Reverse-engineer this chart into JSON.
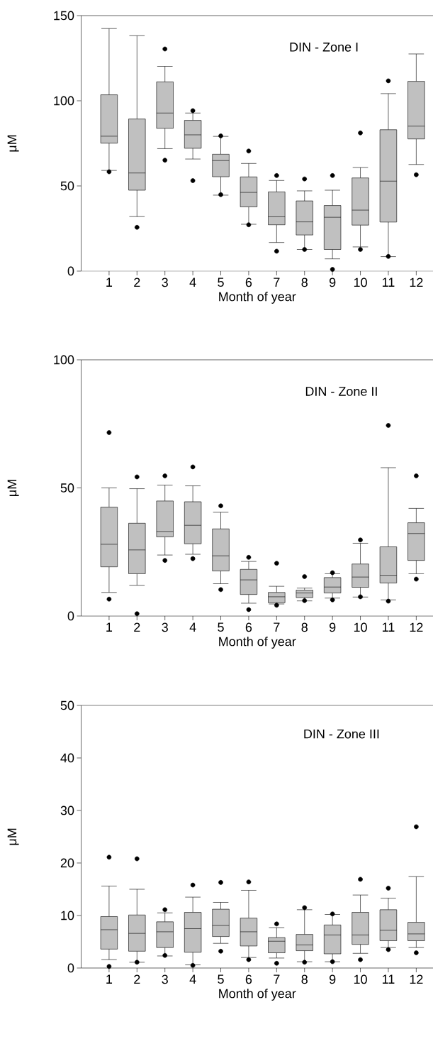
{
  "chart_data": [
    {
      "type": "box",
      "title": "DIN - Zone I",
      "xlabel": "Month of year",
      "ylabel": "μM",
      "categories": [
        "1",
        "2",
        "3",
        "4",
        "5",
        "6",
        "7",
        "8",
        "9",
        "10",
        "11",
        "12"
      ],
      "ylim": [
        0,
        150
      ],
      "yticks": [
        0,
        50,
        100,
        150
      ],
      "marker": "circle",
      "series": [
        {
          "color": "#c0c0c0",
          "boxes": [
            {
              "low": 59.1,
              "q1": 75.1,
              "median": 79.2,
              "q3": 103.5,
              "high": 142.4,
              "outliers": [
                58.3
              ]
            },
            {
              "low": 32.0,
              "q1": 47.5,
              "median": 57.6,
              "q3": 89.3,
              "high": 138.2,
              "outliers": [
                25.7
              ]
            },
            {
              "low": 71.9,
              "q1": 83.8,
              "median": 92.8,
              "q3": 111.1,
              "high": 120.2,
              "outliers": [
                130.4,
                65.1
              ]
            },
            {
              "low": 65.8,
              "q1": 72.1,
              "median": 80.0,
              "q3": 88.5,
              "high": 92.8,
              "outliers": [
                94.2,
                53.1
              ]
            },
            {
              "low": 44.6,
              "q1": 55.4,
              "median": 64.9,
              "q3": 68.6,
              "high": 79.1,
              "outliers": [
                79.4,
                44.9
              ]
            },
            {
              "low": 27.5,
              "q1": 37.7,
              "median": 46.2,
              "q3": 55.3,
              "high": 63.2,
              "outliers": [
                70.5,
                27.2
              ]
            },
            {
              "low": 16.8,
              "q1": 27.2,
              "median": 31.9,
              "q3": 46.5,
              "high": 53.2,
              "outliers": [
                56.1,
                11.7
              ]
            },
            {
              "low": 12.7,
              "q1": 21.2,
              "median": 28.9,
              "q3": 41.2,
              "high": 47.1,
              "outliers": [
                54.1,
                12.7
              ]
            },
            {
              "low": 7.2,
              "q1": 12.7,
              "median": 31.6,
              "q3": 38.5,
              "high": 47.5,
              "outliers": [
                56.1,
                1.0
              ]
            },
            {
              "low": 14.2,
              "q1": 27.0,
              "median": 35.8,
              "q3": 54.7,
              "high": 60.8,
              "outliers": [
                81.1,
                12.7
              ]
            },
            {
              "low": 8.5,
              "q1": 28.8,
              "median": 52.8,
              "q3": 83.0,
              "high": 104.2,
              "outliers": [
                111.7,
                8.6
              ]
            },
            {
              "low": 62.6,
              "q1": 77.6,
              "median": 85.1,
              "q3": 111.4,
              "high": 127.5,
              "outliers": [
                56.6
              ]
            }
          ]
        }
      ]
    },
    {
      "type": "box",
      "title": "DIN - Zone II",
      "xlabel": "Month of year",
      "ylabel": "μM",
      "categories": [
        "1",
        "2",
        "3",
        "4",
        "5",
        "6",
        "7",
        "8",
        "9",
        "10",
        "11",
        "12"
      ],
      "ylim": [
        0,
        100
      ],
      "yticks": [
        0,
        50,
        100
      ],
      "marker": "circle",
      "series": [
        {
          "color": "#c0c0c0",
          "boxes": [
            {
              "low": 9.2,
              "q1": 19.2,
              "median": 28.0,
              "q3": 42.5,
              "high": 50.0,
              "outliers": [
                71.6,
                6.6
              ]
            },
            {
              "low": 12.0,
              "q1": 16.5,
              "median": 25.8,
              "q3": 36.2,
              "high": 49.7,
              "outliers": [
                54.3,
                0.9
              ]
            },
            {
              "low": 23.8,
              "q1": 30.9,
              "median": 33.0,
              "q3": 44.9,
              "high": 51.1,
              "outliers": [
                54.7,
                21.7
              ]
            },
            {
              "low": 24.1,
              "q1": 28.2,
              "median": 35.4,
              "q3": 44.6,
              "high": 50.8,
              "outliers": [
                58.2,
                22.4
              ]
            },
            {
              "low": 12.6,
              "q1": 17.6,
              "median": 23.5,
              "q3": 34.0,
              "high": 40.5,
              "outliers": [
                43.0,
                10.3
              ]
            },
            {
              "low": 5.0,
              "q1": 8.4,
              "median": 14.1,
              "q3": 18.2,
              "high": 21.3,
              "outliers": [
                22.9,
                2.5
              ]
            },
            {
              "low": 4.7,
              "q1": 5.2,
              "median": 7.5,
              "q3": 9.2,
              "high": 11.6,
              "outliers": [
                20.6,
                4.2
              ]
            },
            {
              "low": 5.9,
              "q1": 7.2,
              "median": 9.0,
              "q3": 10.1,
              "high": 10.9,
              "outliers": [
                15.4,
                6.0
              ]
            },
            {
              "low": 7.0,
              "q1": 9.0,
              "median": 11.3,
              "q3": 15.0,
              "high": 16.5,
              "outliers": [
                16.9,
                6.3
              ]
            },
            {
              "low": 7.4,
              "q1": 11.2,
              "median": 15.2,
              "q3": 20.3,
              "high": 28.4,
              "outliers": [
                29.7,
                7.5
              ]
            },
            {
              "low": 6.3,
              "q1": 12.9,
              "median": 15.9,
              "q3": 27.0,
              "high": 57.9,
              "outliers": [
                74.4,
                5.8
              ]
            },
            {
              "low": 16.5,
              "q1": 21.7,
              "median": 32.2,
              "q3": 36.4,
              "high": 42.0,
              "outliers": [
                54.7,
                14.4
              ]
            }
          ]
        }
      ]
    },
    {
      "type": "box",
      "title": "DIN - Zone III",
      "xlabel": "Month of year",
      "ylabel": "μM",
      "categories": [
        "1",
        "2",
        "3",
        "4",
        "5",
        "6",
        "7",
        "8",
        "9",
        "10",
        "11",
        "12"
      ],
      "ylim": [
        0,
        50
      ],
      "yticks": [
        0,
        10,
        20,
        30,
        40,
        50
      ],
      "marker": "circle",
      "series": [
        {
          "color": "#c0c0c0",
          "boxes": [
            {
              "low": 1.6,
              "q1": 3.6,
              "median": 7.3,
              "q3": 9.8,
              "high": 15.6,
              "outliers": [
                21.1,
                0.3
              ]
            },
            {
              "low": 1.1,
              "q1": 3.2,
              "median": 6.6,
              "q3": 10.1,
              "high": 15.0,
              "outliers": [
                20.8,
                1.1
              ]
            },
            {
              "low": 2.3,
              "q1": 3.9,
              "median": 6.9,
              "q3": 8.8,
              "high": 10.5,
              "outliers": [
                11.1,
                2.4
              ]
            },
            {
              "low": 0.6,
              "q1": 3.0,
              "median": 7.5,
              "q3": 10.6,
              "high": 13.5,
              "outliers": [
                15.8,
                0.5
              ]
            },
            {
              "low": 4.7,
              "q1": 6.0,
              "median": 8.1,
              "q3": 11.2,
              "high": 12.5,
              "outliers": [
                16.3,
                3.2
              ]
            },
            {
              "low": 2.0,
              "q1": 4.2,
              "median": 6.9,
              "q3": 9.5,
              "high": 14.8,
              "outliers": [
                16.4,
                1.6
              ]
            },
            {
              "low": 1.9,
              "q1": 2.9,
              "median": 5.1,
              "q3": 5.8,
              "high": 7.7,
              "outliers": [
                8.4,
                0.9
              ]
            },
            {
              "low": 1.2,
              "q1": 3.3,
              "median": 4.4,
              "q3": 6.4,
              "high": 11.1,
              "outliers": [
                11.5,
                1.1
              ]
            },
            {
              "low": 1.2,
              "q1": 2.7,
              "median": 6.3,
              "q3": 8.2,
              "high": 10.2,
              "outliers": [
                10.3,
                1.2
              ]
            },
            {
              "low": 2.8,
              "q1": 4.5,
              "median": 6.3,
              "q3": 10.6,
              "high": 13.9,
              "outliers": [
                16.9,
                1.6
              ]
            },
            {
              "low": 3.9,
              "q1": 5.2,
              "median": 7.2,
              "q3": 11.1,
              "high": 13.3,
              "outliers": [
                15.2,
                3.5
              ]
            },
            {
              "low": 3.9,
              "q1": 5.2,
              "median": 6.5,
              "q3": 8.7,
              "high": 17.4,
              "outliers": [
                26.9,
                2.9
              ]
            }
          ]
        }
      ]
    }
  ]
}
